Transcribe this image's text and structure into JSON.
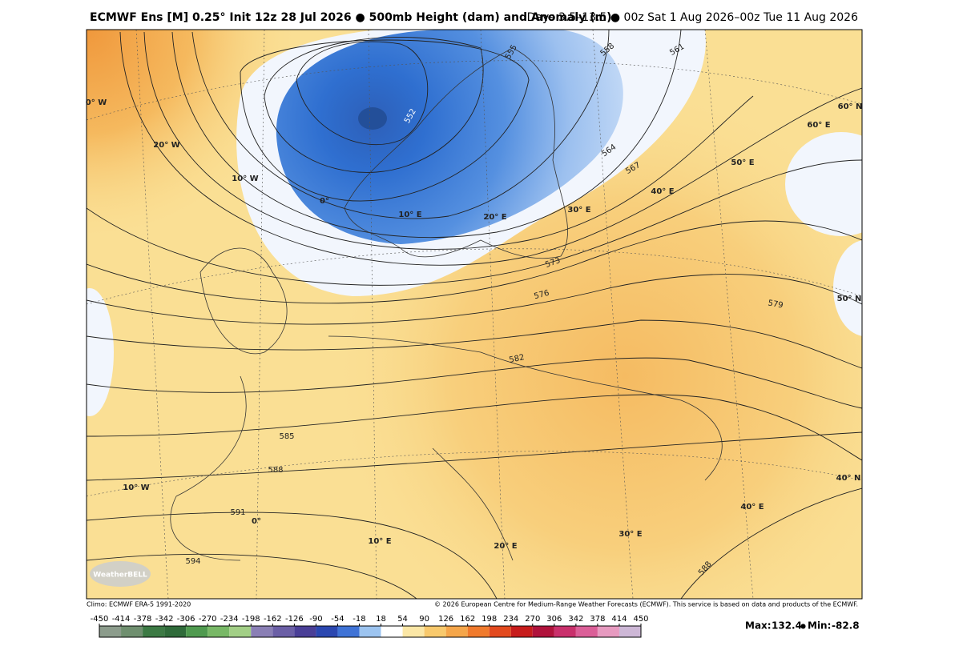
{
  "header": {
    "left": "ECMWF Ens [M] 0.25° Init 12z 28 Jul 2026 ● 500mb Height (dam) and Anomaly (m)",
    "right": "Days 3.5–13.5 ● 00z Sat 1 Aug 2026–00z Tue 11 Aug 2026"
  },
  "footer": {
    "left": "Climo: ECMWF ERA-5 1991-2020",
    "right": "© 2026 European Centre for Medium-Range Weather Forecasts (ECMWF). This service is based on data and products of the ECMWF."
  },
  "logo": "WeatherBELL",
  "contour_labels": [
    552,
    555,
    558,
    561,
    564,
    567,
    573,
    576,
    579,
    582,
    585,
    588,
    591,
    594,
    588
  ],
  "graticule_labels": [
    "0° W",
    "20° W",
    "10° W",
    "0°",
    "10° E",
    "20° E",
    "30° E",
    "40° E",
    "50° E",
    "60° E",
    "60° N",
    "50° N",
    "40° N",
    "10° W",
    "0°",
    "10° E",
    "20° E",
    "30° E",
    "40° E"
  ],
  "colorbar": {
    "ticks": [
      -450,
      -414,
      -378,
      -342,
      -306,
      -270,
      -234,
      -198,
      -162,
      -126,
      -90,
      -54,
      -18,
      18,
      54,
      90,
      126,
      162,
      198,
      234,
      270,
      306,
      342,
      378,
      414,
      450
    ],
    "colors": [
      "#8c9c8c",
      "#6f8f6f",
      "#3c7a44",
      "#2f6b3a",
      "#4f9a4f",
      "#78b866",
      "#a2cf86",
      "#8a7fb5",
      "#6b5fa6",
      "#4a3f97",
      "#2b47b0",
      "#3f73d6",
      "#9cc4f0",
      "#ffffff",
      "#fbe7a6",
      "#f8c96c",
      "#f5a64a",
      "#f07a2c",
      "#e34a1e",
      "#c71c1c",
      "#b0123c",
      "#c9306c",
      "#db5f98",
      "#e79ac0",
      "#cdb7d6"
    ]
  },
  "stats": {
    "max_label": "Max:",
    "max": 132.4,
    "separator": "●",
    "min_label": "Min:",
    "min": -82.8
  }
}
